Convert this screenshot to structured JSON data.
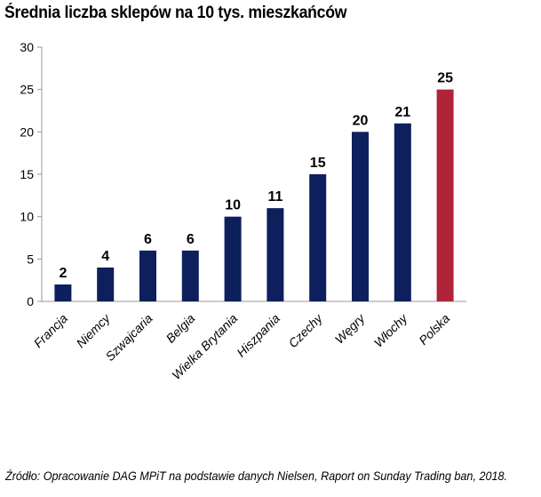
{
  "title": "Średnia liczba sklepów na 10 tys. mieszkańców",
  "source": "Źródło: Opracowanie DAG MPiT na podstawie danych Nielsen, Raport on Sunday Trading ban, 2018.",
  "colors": {
    "default_bar": "#0d1f5c",
    "highlight_bar": "#b0243a",
    "axis": "#999999"
  },
  "chart_data": {
    "type": "bar",
    "title": "Średnia liczba sklepów na 10 tys. mieszkańców",
    "xlabel": "",
    "ylabel": "",
    "categories": [
      "Francja",
      "Niemcy",
      "Szwajcaria",
      "Belgia",
      "Wielka Brytania",
      "Hiszpania",
      "Czechy",
      "Węgry",
      "Włochy",
      "Polska"
    ],
    "values": [
      2,
      4,
      6,
      6,
      10,
      11,
      15,
      20,
      21,
      25
    ],
    "data_labels": [
      "2",
      "4",
      "6",
      "6",
      "10",
      "11",
      "15",
      "20",
      "21",
      "25"
    ],
    "highlight": "Polska",
    "ylim": [
      0,
      30
    ],
    "yticks": [
      0,
      5,
      10,
      15,
      20,
      25,
      30
    ],
    "grid": false,
    "legend": "none"
  }
}
